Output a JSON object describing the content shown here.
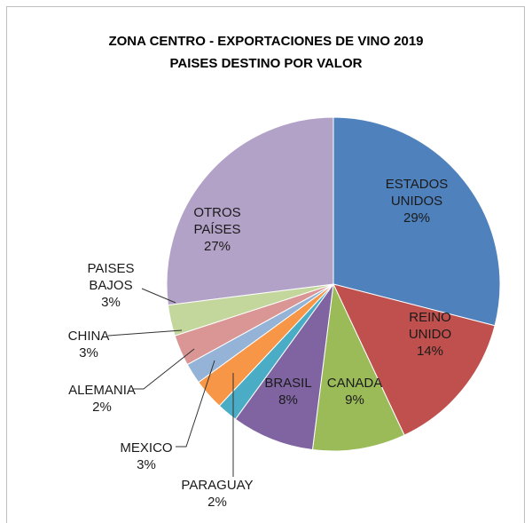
{
  "chart_data": {
    "type": "pie",
    "title": "ZONA CENTRO - EXPORTACIONES DE VINO 2019",
    "subtitle": "PAISES DESTINO POR VALOR",
    "categories": [
      "ESTADOS UNIDOS",
      "REINO UNIDO",
      "CANADA",
      "BRASIL",
      "PARAGUAY",
      "MEXICO",
      "ALEMANIA",
      "CHINA",
      "PAISES BAJOS",
      "OTROS PAÍSES"
    ],
    "values": [
      29,
      14,
      9,
      8,
      2,
      3,
      2,
      3,
      3,
      27
    ],
    "value_labels": [
      "29%",
      "14%",
      "9%",
      "8%",
      "2%",
      "3%",
      "2%",
      "3%",
      "3%",
      "27%"
    ],
    "colors": [
      "#4f81bd",
      "#c0504d",
      "#9bbb59",
      "#8064a2",
      "#4bacc6",
      "#f79646",
      "#95b3d7",
      "#d99694",
      "#c3d69b",
      "#b3a2c7"
    ]
  }
}
